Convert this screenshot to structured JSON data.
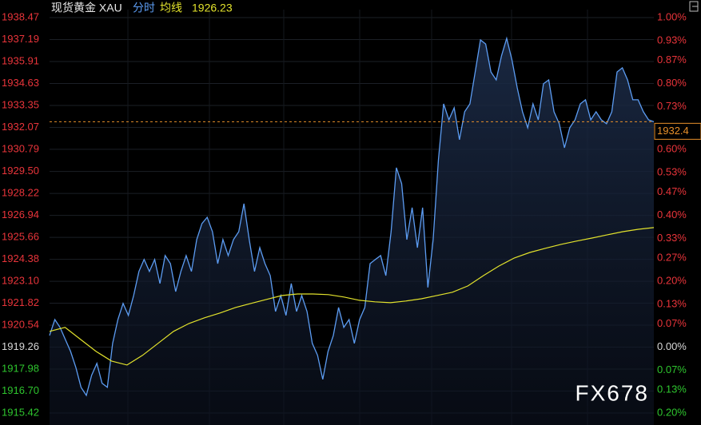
{
  "chart_data": {
    "type": "line",
    "header": {
      "symbol": "现货黄金 XAU"
    },
    "watermark": "FX678",
    "series": [
      {
        "name": "分时",
        "color": "#5c9cf2",
        "values": [
          1919.94,
          1920.87,
          1920.41,
          1919.71,
          1919.01,
          1918.08,
          1916.92,
          1916.45,
          1917.62,
          1918.31,
          1917.15,
          1916.92,
          1919.48,
          1920.87,
          1921.81,
          1921.11,
          1922.27,
          1923.67,
          1924.37,
          1923.67,
          1924.37,
          1922.97,
          1924.6,
          1924.13,
          1922.5,
          1923.67,
          1924.6,
          1923.67,
          1925.53,
          1926.46,
          1926.83,
          1925.99,
          1924.13,
          1925.53,
          1924.6,
          1925.53,
          1925.99,
          1927.62,
          1925.53,
          1923.67,
          1925.06,
          1924.13,
          1923.43,
          1921.34,
          1922.27,
          1921.11,
          1922.97,
          1921.34,
          1922.27,
          1921.34,
          1919.48,
          1918.78,
          1917.38,
          1919.01,
          1919.94,
          1921.57,
          1920.41,
          1920.87,
          1919.48,
          1920.87,
          1921.57,
          1924.13,
          1924.37,
          1924.6,
          1923.43,
          1925.99,
          1929.72,
          1928.79,
          1925.53,
          1927.39,
          1925.06,
          1927.39,
          1922.74,
          1925.53,
          1930.18,
          1933.44,
          1932.51,
          1933.21,
          1931.35,
          1932.98,
          1933.44,
          1935.3,
          1937.17,
          1936.93,
          1935.3,
          1934.84,
          1936.24,
          1937.26,
          1936.0,
          1934.37,
          1932.98,
          1932.05,
          1933.44,
          1932.51,
          1934.61,
          1934.84,
          1932.98,
          1932.28,
          1930.88,
          1932.05,
          1932.51,
          1933.44,
          1933.68,
          1932.51,
          1932.98,
          1932.51,
          1932.28,
          1932.98,
          1935.3,
          1935.54,
          1934.84,
          1933.68,
          1933.68,
          1932.98,
          1932.51,
          1932.4
        ]
      },
      {
        "name": "均线",
        "color": "#e2e22c",
        "values": [
          1920.18,
          1920.41,
          1919.71,
          1919.01,
          1918.45,
          1918.22,
          1918.78,
          1919.48,
          1920.18,
          1920.64,
          1920.97,
          1921.25,
          1921.57,
          1921.81,
          1922.04,
          1922.27,
          1922.36,
          1922.36,
          1922.32,
          1922.18,
          1921.99,
          1921.9,
          1921.85,
          1921.95,
          1922.08,
          1922.27,
          1922.46,
          1922.83,
          1923.43,
          1923.99,
          1924.46,
          1924.78,
          1925.02,
          1925.25,
          1925.44,
          1925.62,
          1925.81,
          1925.99,
          1926.13,
          1926.23
        ]
      }
    ],
    "ylim": [
      1915.42,
      1938.47
    ],
    "yticks": [
      {
        "value": 1938.47,
        "label": "1938.47"
      },
      {
        "value": 1937.19,
        "label": "1937.19"
      },
      {
        "value": 1935.91,
        "label": "1935.91"
      },
      {
        "value": 1934.63,
        "label": "1934.63"
      },
      {
        "value": 1933.35,
        "label": "1933.35"
      },
      {
        "value": 1932.07,
        "label": "1932.07"
      },
      {
        "value": 1930.79,
        "label": "1930.79"
      },
      {
        "value": 1929.5,
        "label": "1929.50"
      },
      {
        "value": 1928.22,
        "label": "1928.22"
      },
      {
        "value": 1926.94,
        "label": "1926.94"
      },
      {
        "value": 1925.66,
        "label": "1925.66"
      },
      {
        "value": 1924.38,
        "label": "1924.38"
      },
      {
        "value": 1923.1,
        "label": "1923.10"
      },
      {
        "value": 1921.82,
        "label": "1921.82"
      },
      {
        "value": 1920.54,
        "label": "1920.54"
      },
      {
        "value": 1919.26,
        "label": "1919.26"
      },
      {
        "value": 1917.98,
        "label": "1917.98"
      },
      {
        "value": 1916.7,
        "label": "1916.70"
      },
      {
        "value": 1915.42,
        "label": "1915.42"
      }
    ],
    "y2lim": [
      -0.2,
      1.0
    ],
    "y2ticks": [
      {
        "value": 1.0,
        "label": "1.00%"
      },
      {
        "value": 0.93,
        "label": "0.93%"
      },
      {
        "value": 0.87,
        "label": "0.87%"
      },
      {
        "value": 0.8,
        "label": "0.80%"
      },
      {
        "value": 0.73,
        "label": "0.73%"
      },
      {
        "value": 0.6,
        "label": "0.60%"
      },
      {
        "value": 0.53,
        "label": "0.53%"
      },
      {
        "value": 0.47,
        "label": "0.47%"
      },
      {
        "value": 0.4,
        "label": "0.40%"
      },
      {
        "value": 0.33,
        "label": "0.33%"
      },
      {
        "value": 0.27,
        "label": "0.27%"
      },
      {
        "value": 0.2,
        "label": "0.20%"
      },
      {
        "value": 0.13,
        "label": "0.13%"
      },
      {
        "value": 0.07,
        "label": "0.07%"
      },
      {
        "value": 0.0,
        "label": "0.00%"
      },
      {
        "value": -0.07,
        "label": "0.07%"
      },
      {
        "value": -0.13,
        "label": "0.13%"
      },
      {
        "value": -0.2,
        "label": "0.20%"
      }
    ],
    "grid": true,
    "up_color": "#e8343a",
    "down_color": "#2ec52e",
    "flat_color": "#d8d8d8",
    "last_price_color": "#e8902a"
  }
}
